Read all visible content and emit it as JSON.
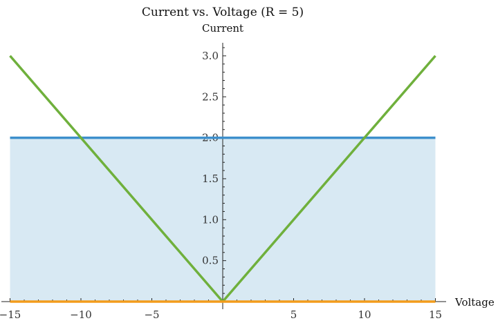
{
  "chart_data": {
    "type": "line",
    "title": "Current vs. Voltage (R = 5)",
    "xlabel": "Voltage",
    "ylabel": "Current",
    "xlim": [
      -15,
      15
    ],
    "ylim": [
      0,
      3.1
    ],
    "xticks": [
      -15,
      -10,
      -5,
      5,
      10,
      15
    ],
    "xtick_labels": [
      "−15",
      "−10",
      "−5",
      "5",
      "10",
      "15"
    ],
    "yticks": [
      0.5,
      1.0,
      1.5,
      2.0,
      2.5,
      3.0
    ],
    "ytick_labels": [
      "0.5",
      "1.0",
      "1.5",
      "2.0",
      "2.5",
      "3.0"
    ],
    "grid": false,
    "series": [
      {
        "color": "#3d8fcc",
        "fill_color": "#d8e9f3",
        "fill_to": 0,
        "x": [
          -15,
          15
        ],
        "y": [
          2,
          2
        ]
      },
      {
        "color": "#6fb03c",
        "x": [
          -15,
          0,
          15
        ],
        "y": [
          3,
          0,
          3
        ]
      },
      {
        "color": "#f39c1c",
        "x": [
          -15,
          15
        ],
        "y": [
          0,
          0
        ]
      }
    ]
  }
}
